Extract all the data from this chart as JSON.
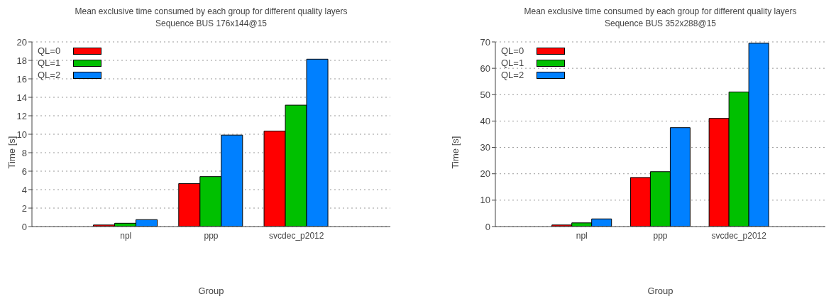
{
  "chart_data": [
    {
      "type": "bar",
      "title": "Mean exclusive time consumed by each group for different quality layers",
      "subtitle": "Sequence BUS 176x144@15",
      "xlabel": "Group",
      "ylabel": "Time [s]",
      "categories": [
        "npl",
        "ppp",
        "svcdec_p2012"
      ],
      "series": [
        {
          "name": "QL=0",
          "color": "#ff0000",
          "values": [
            0.17,
            4.66,
            10.34
          ]
        },
        {
          "name": "QL=1",
          "color": "#00c000",
          "values": [
            0.36,
            5.41,
            13.15
          ]
        },
        {
          "name": "QL=2",
          "color": "#0080ff",
          "values": [
            0.75,
            9.91,
            18.13
          ]
        }
      ],
      "ylim": [
        0,
        20
      ],
      "yticks": [
        0,
        2,
        4,
        6,
        8,
        10,
        12,
        14,
        16,
        18,
        20
      ],
      "grid": "y",
      "legend": "top left"
    },
    {
      "type": "bar",
      "title": "Mean exclusive time consumed by each group for different quality layers",
      "subtitle": "Sequence BUS 352x288@15",
      "xlabel": "Group",
      "ylabel": "Time [s]",
      "categories": [
        "npl",
        "ppp",
        "svcdec_p2012"
      ],
      "series": [
        {
          "name": "QL=0",
          "color": "#ff0000",
          "values": [
            0.6,
            18.6,
            41.0
          ]
        },
        {
          "name": "QL=1",
          "color": "#00c000",
          "values": [
            1.4,
            20.8,
            51.0
          ]
        },
        {
          "name": "QL=2",
          "color": "#0080ff",
          "values": [
            2.9,
            37.5,
            69.5
          ]
        }
      ],
      "ylim": [
        0,
        70
      ],
      "yticks": [
        0,
        10,
        20,
        30,
        40,
        50,
        60,
        70
      ],
      "grid": "y",
      "legend": "top left"
    }
  ]
}
